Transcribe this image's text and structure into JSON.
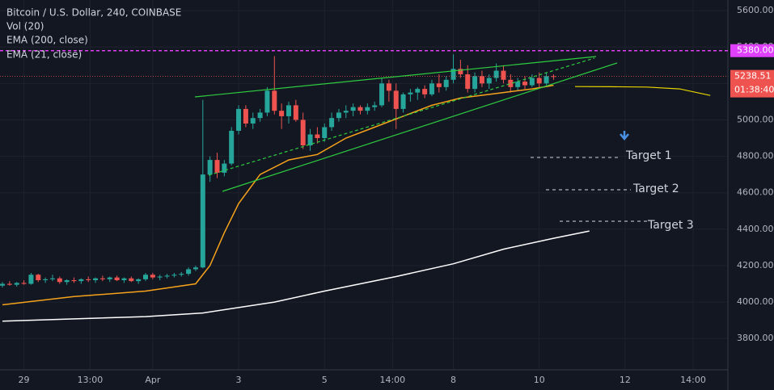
{
  "chart_data": {
    "type": "candlestick",
    "title": "Bitcoin / U.S. Dollar, 240, COINBASE",
    "volume_label": "Vol (20)",
    "x": [
      0,
      1,
      2,
      3,
      4,
      5,
      6,
      7,
      8,
      9,
      10,
      11,
      12,
      13,
      14,
      15,
      16,
      17,
      18,
      19,
      20,
      21,
      22,
      23,
      24,
      25,
      26,
      27,
      28,
      29,
      30,
      31,
      32,
      33,
      34,
      35,
      36,
      37,
      38,
      39,
      40,
      41,
      42,
      43,
      44,
      45,
      46,
      47,
      48,
      49,
      50,
      51,
      52,
      53,
      54,
      55,
      56,
      57,
      58,
      59,
      60,
      61,
      62,
      63,
      64,
      65,
      66,
      67,
      68,
      69,
      70,
      71,
      72,
      73,
      74,
      75,
      76,
      77
    ],
    "open": [
      4090,
      4100,
      4095,
      4105,
      4100,
      4150,
      4120,
      4125,
      4130,
      4110,
      4120,
      4115,
      4125,
      4120,
      4130,
      4125,
      4135,
      4120,
      4130,
      4115,
      4125,
      4150,
      4135,
      4140,
      4145,
      4150,
      4155,
      4180,
      4190,
      4700,
      4780,
      4710,
      4760,
      4940,
      5060,
      4980,
      5010,
      5040,
      5160,
      5050,
      5020,
      5080,
      5000,
      4860,
      4920,
      4900,
      4960,
      5010,
      5040,
      5050,
      5070,
      5050,
      5070,
      5080,
      5200,
      5160,
      5060,
      5140,
      5150,
      5170,
      5140,
      5200,
      5180,
      5220,
      5280,
      5250,
      5170,
      5240,
      5200,
      5230,
      5270,
      5220,
      5180,
      5210,
      5190,
      5230,
      5200,
      5240
    ],
    "high": [
      4110,
      4115,
      4110,
      4120,
      4160,
      4155,
      4135,
      4150,
      4140,
      4125,
      4135,
      4130,
      4140,
      4135,
      4145,
      4140,
      4145,
      4135,
      4140,
      4130,
      4160,
      4160,
      4150,
      4155,
      4160,
      4165,
      4190,
      4200,
      5110,
      4800,
      4820,
      4780,
      4960,
      5080,
      5080,
      5040,
      5060,
      5180,
      5350,
      5090,
      5100,
      5110,
      5040,
      4950,
      4960,
      4980,
      5040,
      5060,
      5080,
      5090,
      5080,
      5090,
      5100,
      5230,
      5220,
      5200,
      5150,
      5170,
      5180,
      5190,
      5220,
      5250,
      5240,
      5360,
      5330,
      5300,
      5260,
      5270,
      5250,
      5310,
      5300,
      5250,
      5230,
      5240,
      5250,
      5260,
      5260,
      5250
    ],
    "low": [
      4080,
      4090,
      4085,
      4095,
      4095,
      4110,
      4105,
      4115,
      4100,
      4095,
      4105,
      4100,
      4110,
      4105,
      4115,
      4110,
      4115,
      4105,
      4110,
      4100,
      4115,
      4125,
      4120,
      4130,
      4135,
      4140,
      4145,
      4170,
      4185,
      4660,
      4680,
      4690,
      4750,
      4920,
      4960,
      4950,
      4990,
      5020,
      5030,
      4950,
      4980,
      4990,
      4840,
      4830,
      4870,
      4880,
      4940,
      4990,
      5010,
      5020,
      5030,
      5030,
      5050,
      5070,
      5100,
      4950,
      5040,
      5100,
      5110,
      5120,
      5130,
      5150,
      5160,
      5200,
      5230,
      5150,
      5150,
      5180,
      5170,
      5210,
      5200,
      5150,
      5160,
      5170,
      5180,
      5180,
      5190,
      5220
    ],
    "close": [
      4100,
      4095,
      4105,
      4100,
      4150,
      4120,
      4125,
      4130,
      4110,
      4120,
      4115,
      4125,
      4120,
      4130,
      4125,
      4135,
      4120,
      4130,
      4115,
      4125,
      4150,
      4135,
      4140,
      4145,
      4150,
      4155,
      4180,
      4190,
      4700,
      4780,
      4710,
      4760,
      4940,
      5060,
      4980,
      5010,
      5040,
      5160,
      5050,
      5020,
      5080,
      5000,
      4860,
      4920,
      4900,
      4960,
      5010,
      5040,
      5050,
      5070,
      5050,
      5070,
      5080,
      5200,
      5160,
      5060,
      5140,
      5150,
      5170,
      5140,
      5200,
      5180,
      5220,
      5280,
      5250,
      5170,
      5240,
      5200,
      5230,
      5270,
      5220,
      5180,
      5210,
      5190,
      5230,
      5200,
      5240,
      5238.51
    ],
    "up_color": "#26a69a",
    "down_color": "#ef5350",
    "series": [
      {
        "name": "EMA (200, close)",
        "color": "#ffffff",
        "x": [
          0,
          20,
          28,
          38,
          45,
          55,
          63,
          70,
          77,
          82
        ],
        "values": [
          3895,
          3920,
          3940,
          4000,
          4060,
          4140,
          4210,
          4290,
          4350,
          4390
        ]
      },
      {
        "name": "EMA (21, close)",
        "color": "#f7a21b",
        "x": [
          0,
          10,
          20,
          27,
          29,
          31,
          33,
          36,
          40,
          44,
          48,
          52,
          56,
          60,
          64,
          70,
          74,
          77
        ],
        "values": [
          3985,
          4030,
          4060,
          4100,
          4200,
          4380,
          4540,
          4700,
          4780,
          4810,
          4900,
          4960,
          5020,
          5080,
          5120,
          5150,
          5170,
          5190
        ]
      }
    ],
    "projection": {
      "color": "#e6d400",
      "x": [
        80,
        85,
        90,
        94.6,
        98.9
      ],
      "values": [
        5183,
        5182,
        5180,
        5170,
        5134
      ]
    },
    "hline": {
      "value": 5380,
      "label": "5380.00",
      "color": "#e040fb"
    },
    "last_price": 5238.51,
    "countdown": "01:38:40",
    "targets": [
      "Target 1",
      "Target 2",
      "Target 3"
    ],
    "xlim": [
      -0.34,
      101.36
    ],
    "ylim": [
      3628,
      5658
    ],
    "xticks": [
      {
        "value": 3,
        "label": "29"
      },
      {
        "value": 12.25,
        "label": "13:00"
      },
      {
        "value": 21,
        "label": "Apr"
      },
      {
        "value": 33,
        "label": "3"
      },
      {
        "value": 45,
        "label": "5"
      },
      {
        "value": 54.5,
        "label": "14:00"
      },
      {
        "value": 63,
        "label": "8"
      },
      {
        "value": 75,
        "label": "10"
      },
      {
        "value": 87,
        "label": "12"
      },
      {
        "value": 96.5,
        "label": "14:00"
      }
    ],
    "yticks": [
      {
        "value": 3800,
        "label": "3800.00"
      },
      {
        "value": 4000,
        "label": "4000.00"
      },
      {
        "value": 4200,
        "label": "4200.00"
      },
      {
        "value": 4400,
        "label": "4400.00"
      },
      {
        "value": 4600,
        "label": "4600.00"
      },
      {
        "value": 4800,
        "label": "4800.00"
      },
      {
        "value": 5000,
        "label": "5000.00"
      },
      {
        "value": 5200,
        "label": "5200.00"
      },
      {
        "value": 5400,
        "label": "5400.00"
      },
      {
        "value": 5600,
        "label": "5600.00"
      }
    ],
    "grid": true
  }
}
